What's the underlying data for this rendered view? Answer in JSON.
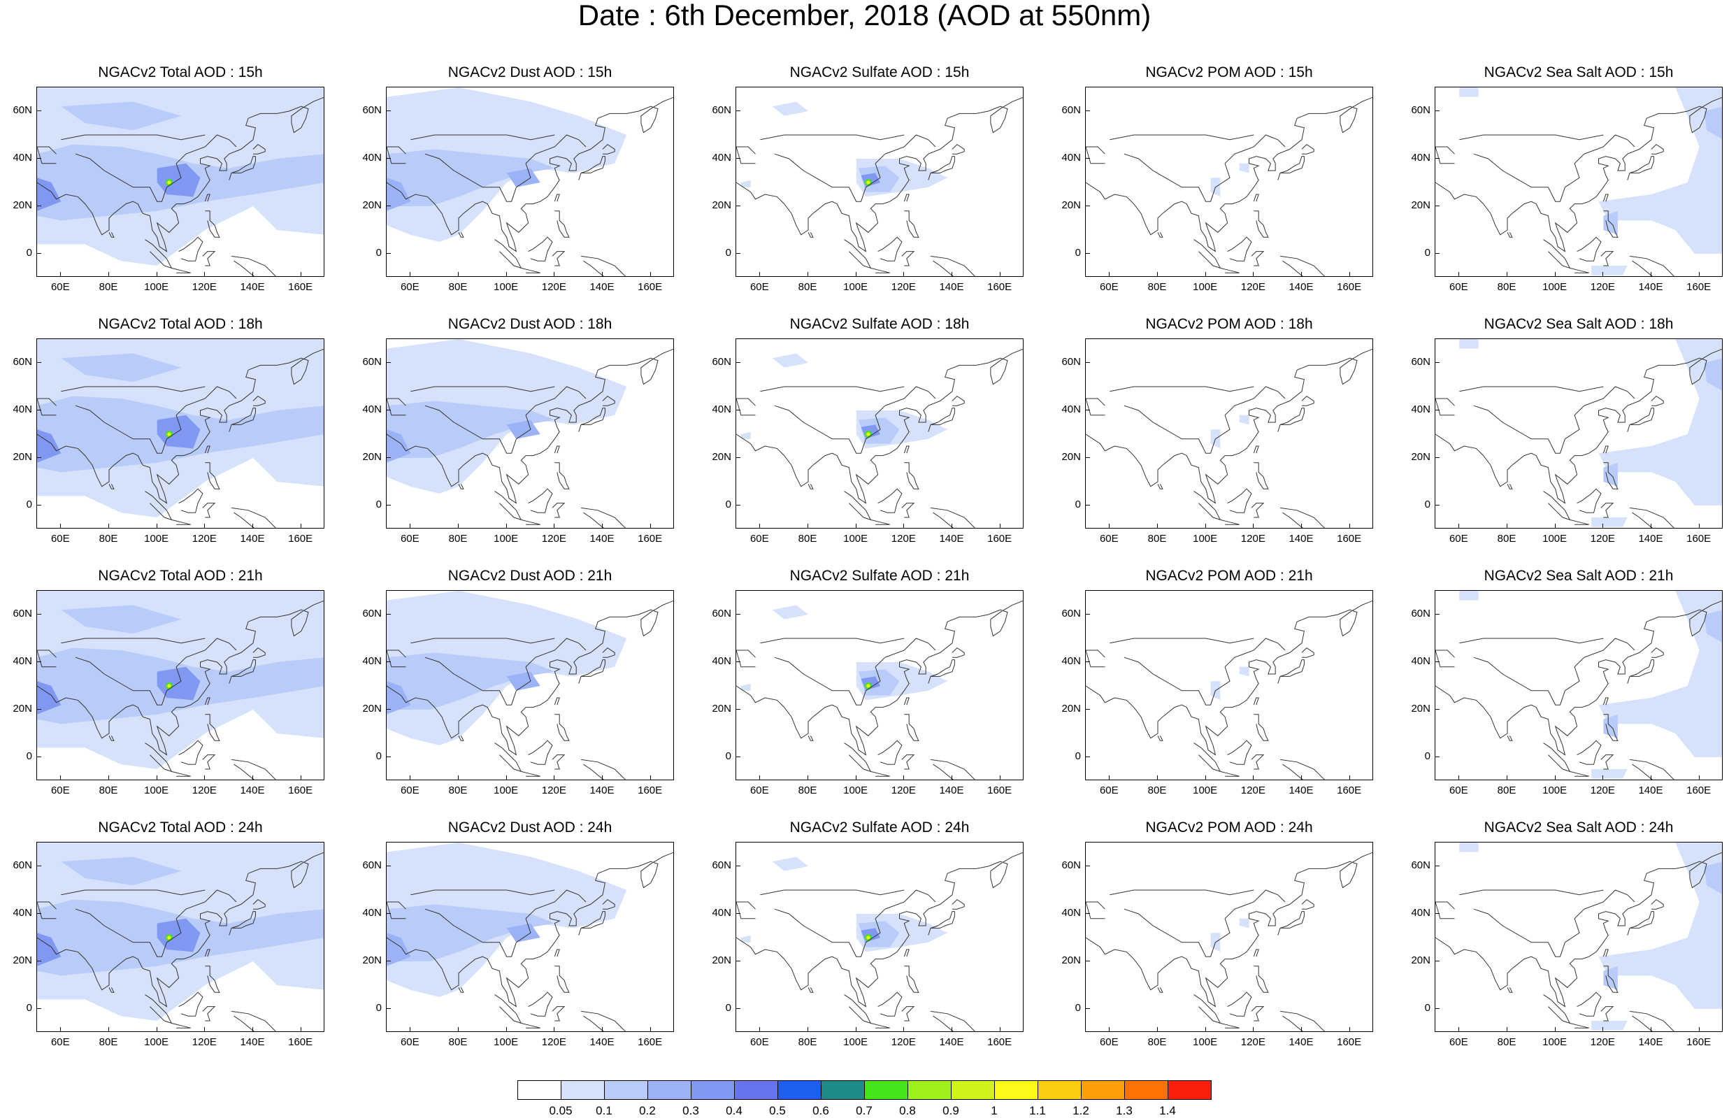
{
  "title": "Date : 6th December, 2018 (AOD at 550nm)",
  "rows": [
    "15h",
    "18h",
    "21h",
    "24h"
  ],
  "columns": [
    {
      "key": "total",
      "titles": [
        "NGACv2 Total AOD : 15h",
        "NGACv2 Total AOD : 18h",
        "NGACv2 Total AOD : 21h",
        "NGACv2 Total AOD : 24h"
      ]
    },
    {
      "key": "dust",
      "titles": [
        "NGACv2 Dust AOD : 15h",
        "NGACv2 Dust AOD : 18h",
        "NGACv2 Dust AOD : 21h",
        "NGACv2 Dust AOD : 24h"
      ]
    },
    {
      "key": "sulfate",
      "titles": [
        "NGACv2 Sulfate AOD : 15h",
        "NGACv2 Sulfate AOD : 18h",
        "NGACv2 Sulfate AOD : 21h",
        "NGACv2 Sulfate AOD : 24h"
      ]
    },
    {
      "key": "pom",
      "titles": [
        "NGACv2 POM AOD : 15h",
        "NGACv2 POM AOD : 18h",
        "NGACv2 POM AOD : 21h",
        "NGACv2 POM AOD : 24h"
      ]
    },
    {
      "key": "seasalt",
      "titles": [
        "NGACv2 Sea Salt AOD : 15h",
        "NGACv2 Sea Salt AOD : 18h",
        "NGACv2 Sea Salt AOD : 21h",
        "NGACv2 Sea Salt  AOD : 24h"
      ]
    }
  ],
  "map": {
    "lon_range": [
      50,
      170
    ],
    "lat_range": [
      -10,
      70
    ],
    "lat_ticks": [
      {
        "value": 60,
        "label": "60N"
      },
      {
        "value": 40,
        "label": "40N"
      },
      {
        "value": 20,
        "label": "20N"
      },
      {
        "value": 0,
        "label": "0"
      }
    ],
    "lon_ticks": [
      {
        "value": 60,
        "label": "60E"
      },
      {
        "value": 80,
        "label": "80E"
      },
      {
        "value": 100,
        "label": "100E"
      },
      {
        "value": 120,
        "label": "120E"
      },
      {
        "value": 140,
        "label": "140E"
      },
      {
        "value": 160,
        "label": "160E"
      }
    ]
  },
  "colorbar": {
    "labels": [
      "0.05",
      "0.1",
      "0.2",
      "0.3",
      "0.4",
      "0.5",
      "0.6",
      "0.7",
      "0.8",
      "0.9",
      "1",
      "1.1",
      "1.2",
      "1.3",
      "1.4"
    ],
    "colors": [
      "#ffffff",
      "#d6e2fb",
      "#b9cbf9",
      "#9cb2f6",
      "#8198f2",
      "#6674ee",
      "#1f5ff0",
      "#1e8c86",
      "#46e41a",
      "#9ef01a",
      "#d2f31a",
      "#fdfa1a",
      "#fdcd10",
      "#fd9f08",
      "#fd7204",
      "#f81f0d"
    ]
  },
  "plume_levels": {
    "total": {
      "bg": "#d6e2fb",
      "mid": "#b9cbf9",
      "core": "#8198f2",
      "hot": "#46e41a"
    },
    "dust": {
      "bg": "#d6e2fb",
      "mid": "#b9cbf9",
      "core": "#9cb2f6",
      "hot": null
    },
    "sulfate": {
      "bg": "#d6e2fb",
      "mid": "#b9cbf9",
      "core": "#8198f2",
      "hot": "#46e41a"
    },
    "pom": {
      "bg": "#d6e2fb",
      "mid": "#b9cbf9",
      "core": null,
      "hot": null
    },
    "seasalt": {
      "bg": "#d6e2fb",
      "mid": "#b9cbf9",
      "core": null,
      "hot": null
    }
  }
}
